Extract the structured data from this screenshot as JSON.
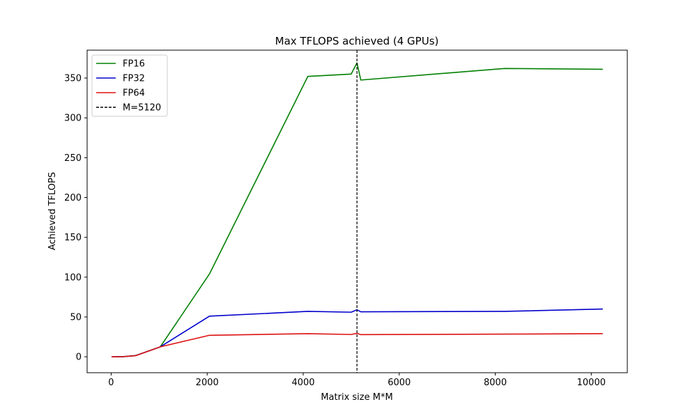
{
  "chart_data": {
    "type": "line",
    "title": "Max TFLOPS achieved (4 GPUs)",
    "xlabel": "Matrix size M*M",
    "ylabel": "Achieved TFLOPS",
    "xlim": [
      -500,
      10750
    ],
    "ylim": [
      -20,
      385
    ],
    "xticks": [
      0,
      2000,
      4000,
      6000,
      8000,
      10000
    ],
    "yticks": [
      0,
      50,
      100,
      150,
      200,
      250,
      300,
      350
    ],
    "grid": false,
    "legend_position": "top-left",
    "series": [
      {
        "name": "FP16",
        "color": "#008000",
        "x": [
          8,
          256,
          512,
          1024,
          2048,
          4096,
          5000,
          5120,
          5200,
          8192,
          10240
        ],
        "y": [
          0.0,
          0.2,
          1.6,
          12.5,
          104,
          352,
          355,
          369,
          347.5,
          362,
          361
        ]
      },
      {
        "name": "FP32",
        "color": "#0000cc",
        "x": [
          8,
          256,
          512,
          1024,
          2048,
          4096,
          5000,
          5120,
          5200,
          8192,
          10240
        ],
        "y": [
          0.0,
          0.2,
          1.5,
          12.5,
          51,
          57,
          56,
          59,
          56.5,
          57,
          60
        ]
      },
      {
        "name": "FP64",
        "color": "#dd1111",
        "x": [
          8,
          256,
          512,
          1024,
          2048,
          4096,
          5000,
          5120,
          5200,
          8192,
          10240
        ],
        "y": [
          0.0,
          0.2,
          1.4,
          12.5,
          27,
          29,
          28,
          29.5,
          27.8,
          28.5,
          29
        ]
      }
    ],
    "vline": {
      "name": "M=5120",
      "x": 5120,
      "color": "#000000",
      "style": "dashed"
    }
  }
}
